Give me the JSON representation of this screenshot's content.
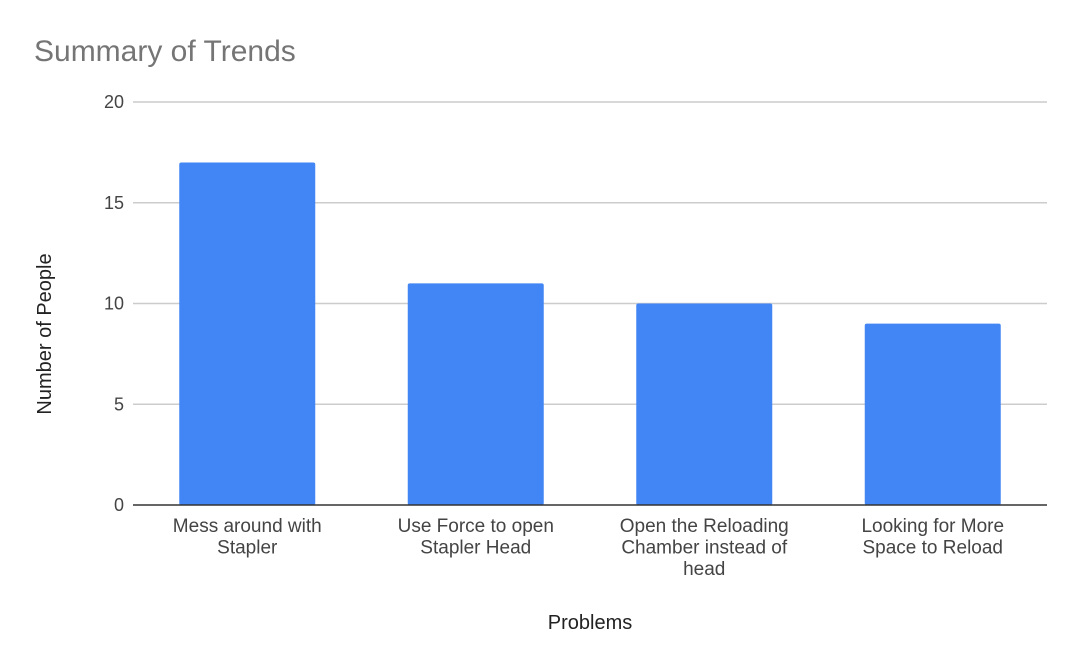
{
  "chart_data": {
    "type": "bar",
    "title": "Summary of Trends",
    "xlabel": "Problems",
    "ylabel": "Number of People",
    "categories": [
      [
        "Mess around with",
        "Stapler"
      ],
      [
        "Use Force to open",
        "Stapler Head"
      ],
      [
        "Open the Reloading",
        "Chamber instead of",
        "head"
      ],
      [
        "Looking for More",
        "Space to Reload"
      ]
    ],
    "values": [
      17,
      11,
      10,
      9
    ],
    "ylim": [
      0,
      20
    ],
    "yticks": [
      0,
      5,
      10,
      15,
      20
    ],
    "grid": true,
    "legend": "none",
    "bar_color": "#4285f4"
  }
}
